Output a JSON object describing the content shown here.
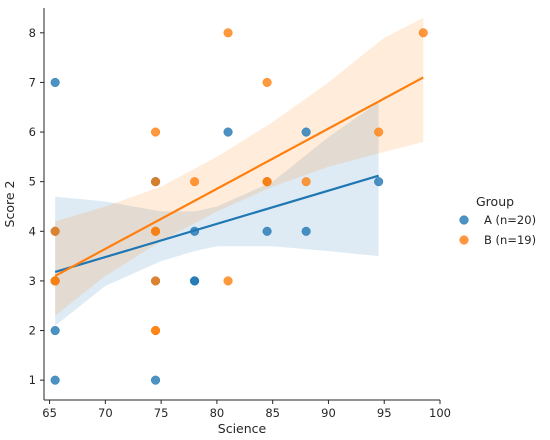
{
  "chart_data": {
    "type": "scatter",
    "xlabel": "Science",
    "ylabel": "Score 2",
    "xlim": [
      64.5,
      100
    ],
    "ylim": [
      0.6,
      8.5
    ],
    "xticks": [
      65,
      70,
      75,
      80,
      85,
      90,
      95,
      100
    ],
    "yticks": [
      1,
      2,
      3,
      4,
      5,
      6,
      7,
      8
    ],
    "legend": {
      "title": "Group",
      "placement": "right"
    },
    "series": [
      {
        "name": "A (n=20)",
        "color": "#1f77b4",
        "points": [
          [
            65.5,
            7
          ],
          [
            65.5,
            4
          ],
          [
            65.5,
            3
          ],
          [
            65.5,
            2
          ],
          [
            65.5,
            1
          ],
          [
            74.5,
            5
          ],
          [
            74.5,
            4
          ],
          [
            74.5,
            3
          ],
          [
            74.5,
            1
          ],
          [
            78,
            4
          ],
          [
            78,
            3
          ],
          [
            78,
            3
          ],
          [
            81,
            6
          ],
          [
            84.5,
            4
          ],
          [
            84.5,
            5
          ],
          [
            88,
            6
          ],
          [
            88,
            4
          ],
          [
            94.5,
            5
          ],
          [
            74.5,
            5
          ],
          [
            65.5,
            3
          ]
        ],
        "regression": {
          "x": [
            65.5,
            94.5
          ],
          "y": [
            3.18,
            5.12
          ]
        },
        "ci_band": {
          "x": [
            65.5,
            70,
            75,
            78,
            80,
            85,
            90,
            94.5
          ],
          "lower": [
            2.1,
            2.9,
            3.4,
            3.6,
            3.7,
            3.7,
            3.6,
            3.5
          ],
          "upper": [
            4.7,
            4.6,
            4.4,
            4.4,
            4.5,
            5.0,
            5.9,
            6.6
          ]
        }
      },
      {
        "name": "B (n=19)",
        "color": "#ff7f0e",
        "points": [
          [
            65.5,
            4
          ],
          [
            65.5,
            3
          ],
          [
            74.5,
            6
          ],
          [
            74.5,
            5
          ],
          [
            74.5,
            4
          ],
          [
            74.5,
            3
          ],
          [
            74.5,
            2
          ],
          [
            74.5,
            2
          ],
          [
            78,
            5
          ],
          [
            81,
            8
          ],
          [
            81,
            3
          ],
          [
            84.5,
            7
          ],
          [
            84.5,
            5
          ],
          [
            88,
            5
          ],
          [
            94.5,
            6
          ],
          [
            98.5,
            8
          ],
          [
            74.5,
            4
          ],
          [
            65.5,
            3
          ],
          [
            84.5,
            5
          ]
        ],
        "regression": {
          "x": [
            65.5,
            98.5
          ],
          "y": [
            3.1,
            7.1
          ]
        },
        "ci_band": {
          "x": [
            65.5,
            70,
            75,
            80,
            85,
            90,
            95,
            98.5
          ],
          "lower": [
            2.3,
            3.1,
            3.8,
            4.4,
            4.9,
            5.3,
            5.6,
            5.8
          ],
          "upper": [
            4.2,
            4.5,
            4.9,
            5.5,
            6.2,
            7.0,
            7.9,
            8.3
          ]
        }
      }
    ]
  }
}
